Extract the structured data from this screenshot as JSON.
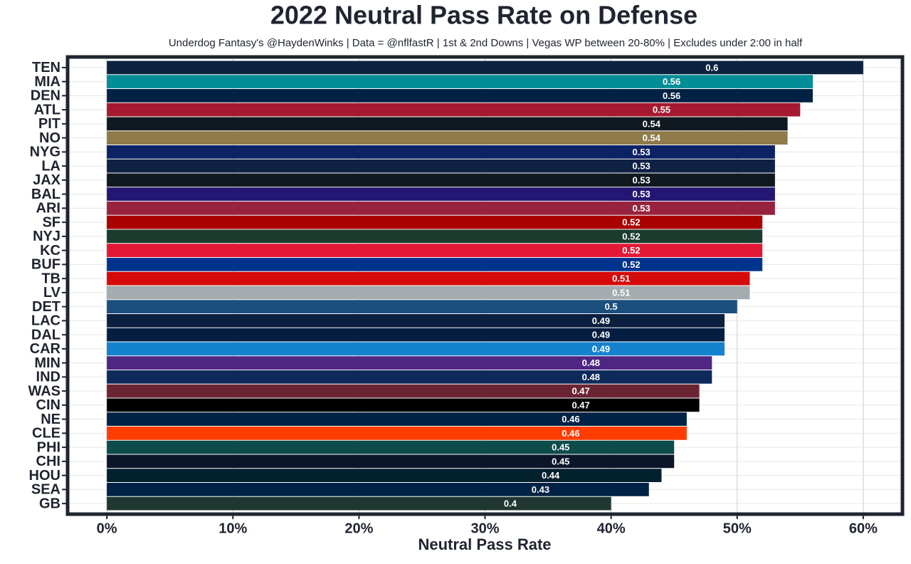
{
  "chart_data": {
    "type": "barh",
    "title": "2022 Neutral Pass Rate on Defense",
    "subtitle": "Underdog Fantasy's @HaydenWinks | Data = @nflfastR | 1st & 2nd Downs | Vegas WP between 20-80% | Excludes under 2:00 in half",
    "x_label": "Neutral Pass Rate",
    "categories": [
      "TEN",
      "MIA",
      "DEN",
      "ATL",
      "PIT",
      "NO",
      "NYG",
      "LA",
      "JAX",
      "BAL",
      "ARI",
      "SF",
      "NYJ",
      "KC",
      "BUF",
      "TB",
      "LV",
      "DET",
      "LAC",
      "DAL",
      "CAR",
      "MIN",
      "IND",
      "WAS",
      "CIN",
      "NE",
      "CLE",
      "PHI",
      "CHI",
      "HOU",
      "SEA",
      "GB"
    ],
    "values": [
      60,
      56,
      56,
      55,
      54,
      54,
      53,
      53,
      53,
      53,
      53,
      52,
      52,
      52,
      52,
      51,
      51,
      50,
      49,
      49,
      49,
      48,
      48,
      47,
      47,
      46,
      46,
      45,
      45,
      44,
      43,
      40
    ],
    "value_labels": [
      "0.6",
      "0.56",
      "0.56",
      "0.55",
      "0.54",
      "0.54",
      "0.53",
      "0.53",
      "0.53",
      "0.53",
      "0.53",
      "0.52",
      "0.52",
      "0.52",
      "0.52",
      "0.51",
      "0.51",
      "0.5",
      "0.49",
      "0.49",
      "0.49",
      "0.48",
      "0.48",
      "0.47",
      "0.47",
      "0.46",
      "0.46",
      "0.45",
      "0.45",
      "0.44",
      "0.43",
      "0.4"
    ],
    "colors": [
      "#0C2340",
      "#008E97",
      "#002244",
      "#A71930",
      "#101820",
      "#8F7A4A",
      "#0B2265",
      "#0F2244",
      "#101820",
      "#241773",
      "#97233F",
      "#AA0000",
      "#1B3B2E",
      "#E31837",
      "#00338D",
      "#D50A0A",
      "#A5ACAF",
      "#1B4F7E",
      "#0B1F3F",
      "#041E42",
      "#1582CF",
      "#4F2683",
      "#0E2A5A",
      "#6B2434",
      "#000000",
      "#002244",
      "#FF3C00",
      "#0E4B4B",
      "#0B162A",
      "#03202F",
      "#002244",
      "#203731"
    ],
    "xlim": [
      -3,
      63
    ],
    "xticks": [
      {
        "value": 0,
        "label": "0%"
      },
      {
        "value": 10,
        "label": "10%"
      },
      {
        "value": 20,
        "label": "20%"
      },
      {
        "value": 30,
        "label": "30%"
      },
      {
        "value": 40,
        "label": "40%"
      },
      {
        "value": 50,
        "label": "50%"
      },
      {
        "value": 60,
        "label": "60%"
      }
    ],
    "grid": true
  }
}
